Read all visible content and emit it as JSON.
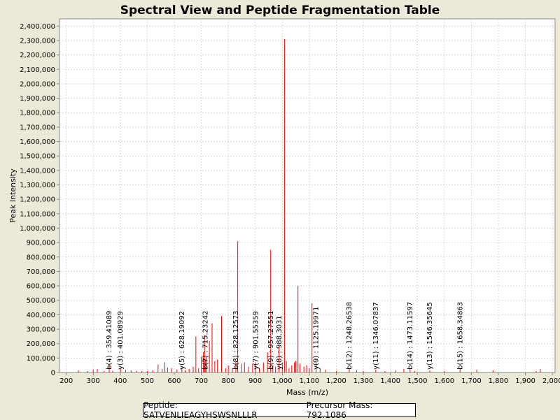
{
  "chart_data": {
    "type": "bar",
    "title": "Spectral View and Peptide Fragmentation Table",
    "xlabel": "Mass (m/z)",
    "ylabel": "Peak Intensity",
    "xlim": [
      175,
      2010
    ],
    "ylim": [
      0,
      2450000
    ],
    "x_ticks": [
      200,
      300,
      400,
      500,
      600,
      700,
      800,
      900,
      1000,
      1100,
      1200,
      1300,
      1400,
      1500,
      1600,
      1700,
      1800,
      1900,
      2000
    ],
    "x_tick_labels": [
      "200",
      "300",
      "400",
      "500",
      "600",
      "700",
      "800",
      "900",
      "1,000",
      "1,100",
      "1,200",
      "1,300",
      "1,400",
      "1,500",
      "1,600",
      "1,700",
      "1,800",
      "1,900",
      "2,000"
    ],
    "y_ticks": [
      0,
      100000,
      200000,
      300000,
      400000,
      500000,
      600000,
      700000,
      800000,
      900000,
      1000000,
      1100000,
      1200000,
      1300000,
      1400000,
      1500000,
      1600000,
      1700000,
      1800000,
      1900000,
      2000000,
      2100000,
      2200000,
      2300000,
      2400000
    ],
    "y_tick_labels": [
      "0",
      "100,000",
      "200,000",
      "300,000",
      "400,000",
      "500,000",
      "600,000",
      "700,000",
      "800,000",
      "900,000",
      "1,000,000",
      "1,100,000",
      "1,200,000",
      "1,300,000",
      "1,400,000",
      "1,500,000",
      "1,600,000",
      "1,700,000",
      "1,800,000",
      "1,900,000",
      "2,000,000",
      "2,100,000",
      "2,200,000",
      "2,300,000",
      "2,400,000"
    ],
    "grid": true,
    "bar_color": "#ff0000",
    "series": [
      {
        "name": "peaks",
        "x": [
          245,
          280,
          300,
          315,
          340,
          359,
          372,
          401,
          420,
          440,
          460,
          480,
          500,
          520,
          540,
          555,
          565,
          575,
          590,
          610,
          628,
          640,
          655,
          670,
          680,
          690,
          700,
          708,
          712,
          715,
          720,
          730,
          740,
          750,
          760,
          775,
          790,
          800,
          815,
          828,
          835,
          850,
          860,
          875,
          890,
          901,
          915,
          930,
          945,
          957,
          965,
          975,
          988,
          1000,
          1008,
          1015,
          1025,
          1035,
          1045,
          1050,
          1058,
          1065,
          1080,
          1090,
          1100,
          1110,
          1125,
          1140,
          1160,
          1200,
          1248,
          1275,
          1300,
          1346,
          1380,
          1420,
          1450,
          1473,
          1490,
          1546,
          1600,
          1658,
          1720,
          1780,
          1940,
          1955
        ],
        "y": [
          15000,
          10000,
          20000,
          25000,
          10000,
          55000,
          12000,
          30000,
          18000,
          15000,
          12000,
          10000,
          10000,
          15000,
          55000,
          25000,
          70000,
          35000,
          30000,
          20000,
          35000,
          15000,
          25000,
          40000,
          250000,
          30000,
          110000,
          140000,
          260000,
          90000,
          110000,
          220000,
          340000,
          80000,
          90000,
          390000,
          30000,
          50000,
          30000,
          80000,
          910000,
          60000,
          70000,
          40000,
          60000,
          70000,
          30000,
          70000,
          140000,
          850000,
          50000,
          40000,
          180000,
          70000,
          2310000,
          80000,
          30000,
          50000,
          70000,
          80000,
          600000,
          60000,
          40000,
          50000,
          30000,
          480000,
          80000,
          30000,
          20000,
          10000,
          25000,
          15000,
          10000,
          20000,
          10000,
          15000,
          25000,
          30000,
          10000,
          15000,
          10000,
          25000,
          20000,
          15000,
          10000,
          25000
        ]
      }
    ],
    "ion_labels": [
      {
        "mz": 359.41089,
        "label": "b(4) : 359.41089"
      },
      {
        "mz": 401.08929,
        "label": "y(3) : 401.08929"
      },
      {
        "mz": 628.19092,
        "label": "y(5) : 628.19092"
      },
      {
        "mz": 715.23242,
        "label": "b(7) : 715.23242"
      },
      {
        "mz": 828.12573,
        "label": "b(8) : 828.12573"
      },
      {
        "mz": 901.55359,
        "label": "y(7) : 901.55359"
      },
      {
        "mz": 957.27551,
        "label": "b(9) : 957.27551"
      },
      {
        "mz": 988.3031,
        "label": "y(8) : 988.3031"
      },
      {
        "mz": 1125.19971,
        "label": "y(9) : 1125.19971"
      },
      {
        "mz": 1248.26538,
        "label": "b(12) : 1248.26538"
      },
      {
        "mz": 1346.07837,
        "label": "y(11) : 1346.07837"
      },
      {
        "mz": 1473.11597,
        "label": "b(14) : 1473.11597"
      },
      {
        "mz": 1546.35645,
        "label": "y(13) : 1546.35645"
      },
      {
        "mz": 1658.34863,
        "label": "b(15) : 1658.34863"
      }
    ]
  },
  "footer": {
    "peptide": "Peptide: SATVENLIEAGYHSWSNLLLR",
    "precursor": "Precursor Mass: 792.1086"
  }
}
